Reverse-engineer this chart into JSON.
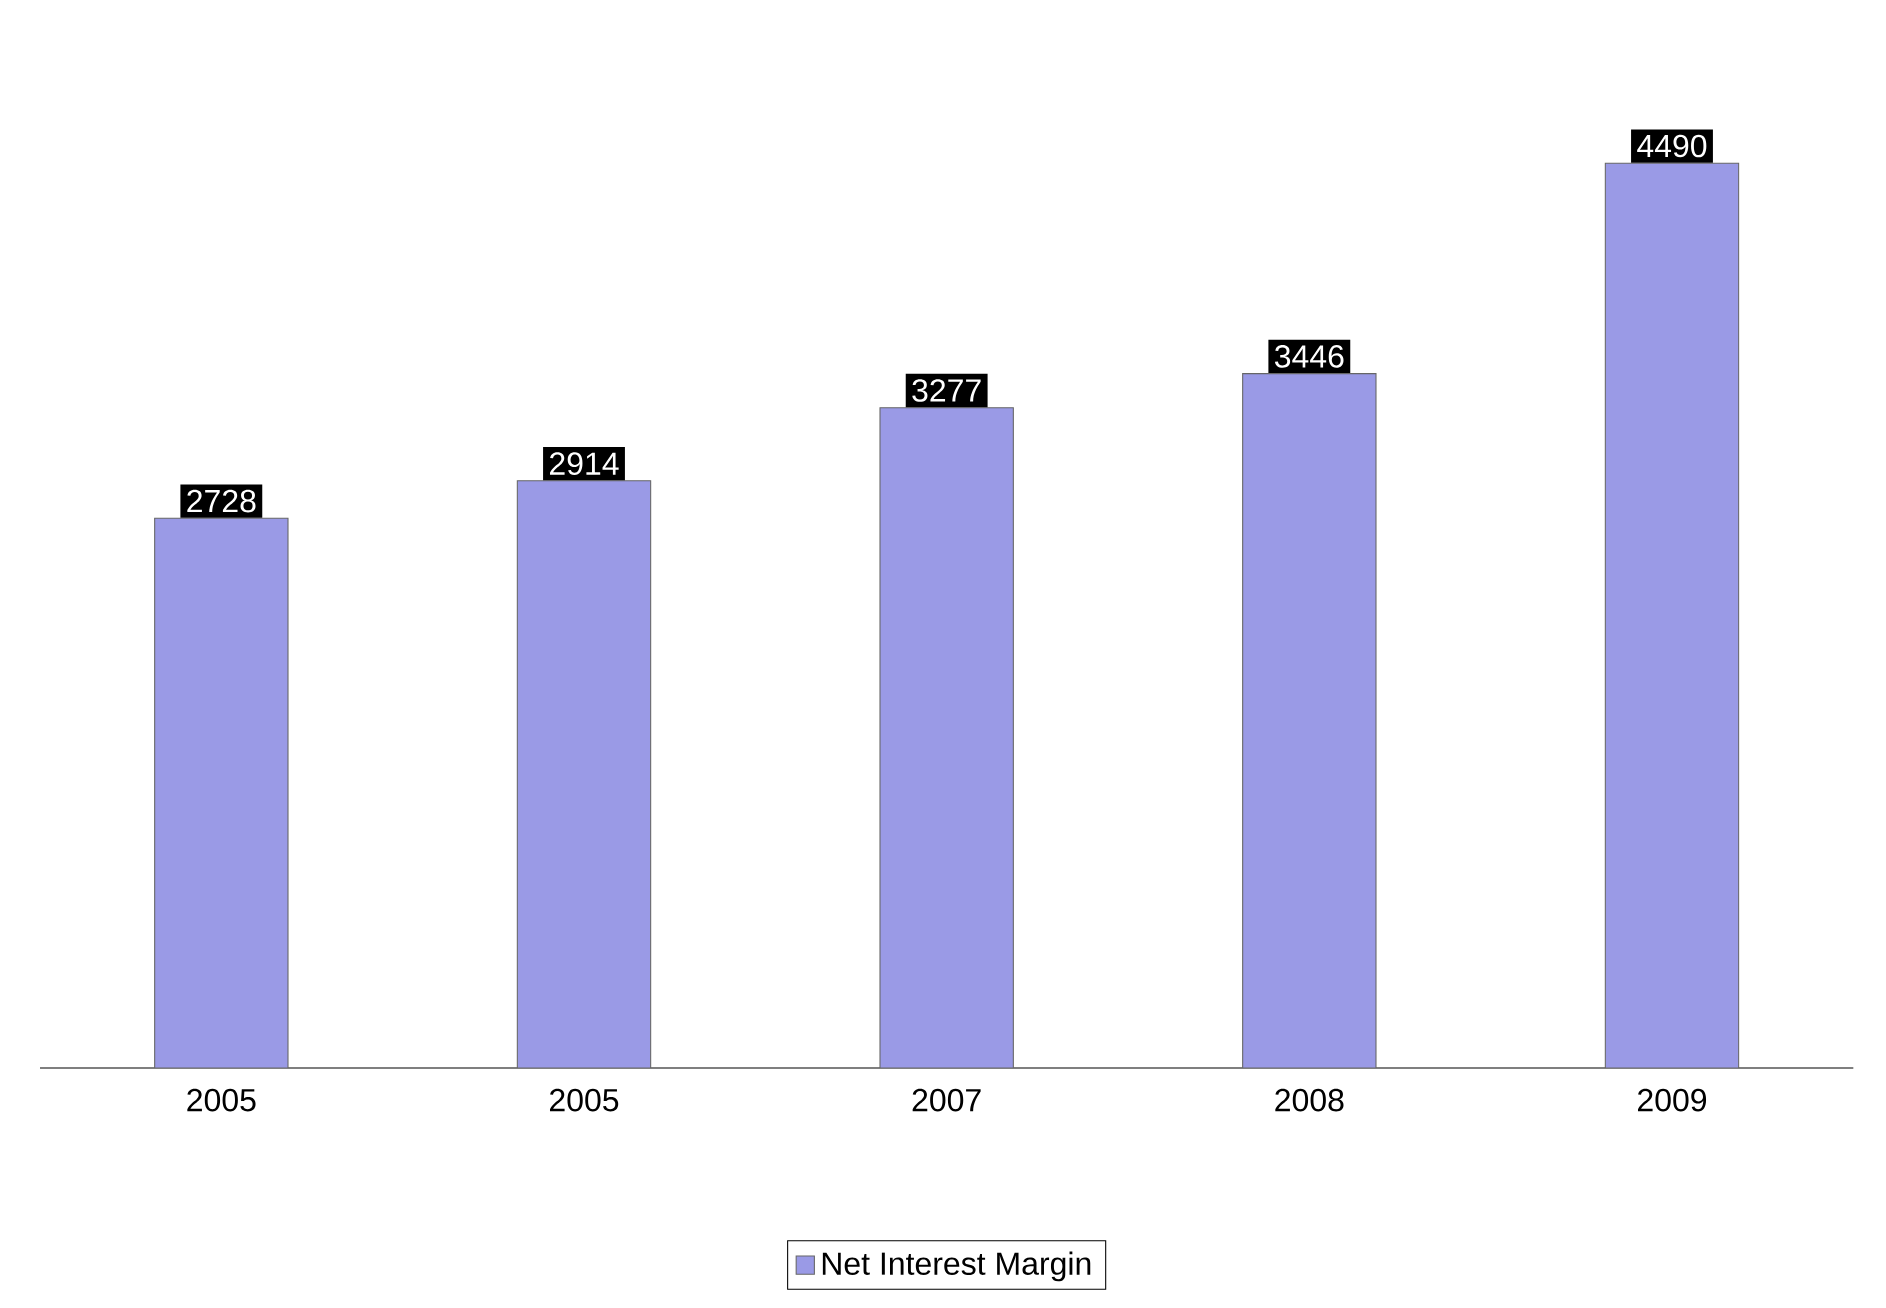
{
  "chart_data": {
    "type": "bar",
    "categories": [
      "2005",
      "2005",
      "2007",
      "2008",
      "2009"
    ],
    "series": [
      {
        "name": "Net Interest Margin",
        "color": "#9a9ae6",
        "values": [
          2728,
          2914,
          3277,
          3446,
          4490
        ]
      }
    ],
    "data_labels": true,
    "legend": "bottom"
  }
}
